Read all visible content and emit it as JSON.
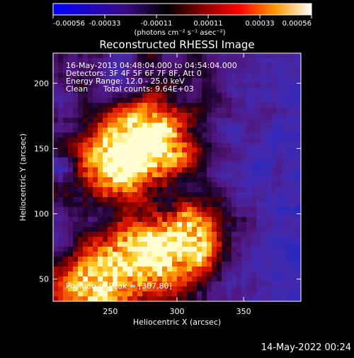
{
  "colorbar": {
    "ticks": [
      "-0.00056",
      "-0.00033",
      "-0.00011",
      "0.00011",
      "0.00033",
      "0.00056"
    ],
    "units": "(photons cm⁻² s⁻¹ asec⁻²)",
    "colors": [
      "#0000ff",
      "#4b0082",
      "#000000",
      "#8b0000",
      "#ff0000",
      "#ff8c00",
      "#ffffff"
    ]
  },
  "chart_data": {
    "type": "heatmap",
    "title": "Reconstructed RHESSI Image",
    "xlabel": "Heliocentric X (arcsec)",
    "ylabel": "Heliocentric Y (arcsec)",
    "xlim": [
      207,
      393
    ],
    "ylim": [
      33,
      223
    ],
    "x_ticks": [
      250,
      300,
      350
    ],
    "y_ticks": [
      50,
      100,
      150,
      200
    ],
    "annotations": {
      "time": "16-May-2013 04:48:04.000 to 04:54:04.000",
      "detectors": "Detectors: 3F 4F 5F 6F 7F 8F, Att 0",
      "energy": "Energy Range: 12.0 - 25.0 keV",
      "method": "Clean",
      "counts": "Total counts: 9.64E+03",
      "peak": "Position of Peak = [307,80]"
    },
    "peak": [
      307,
      80
    ],
    "sources": [
      {
        "x": 280,
        "y": 158,
        "strength": 1.0
      },
      {
        "x": 257,
        "y": 140,
        "strength": 0.85
      },
      {
        "x": 305,
        "y": 80,
        "strength": 1.0
      },
      {
        "x": 265,
        "y": 62,
        "strength": 0.8
      },
      {
        "x": 233,
        "y": 40,
        "strength": 0.6
      }
    ]
  },
  "footer": {
    "timestamp": "14-May-2022 00:24"
  }
}
